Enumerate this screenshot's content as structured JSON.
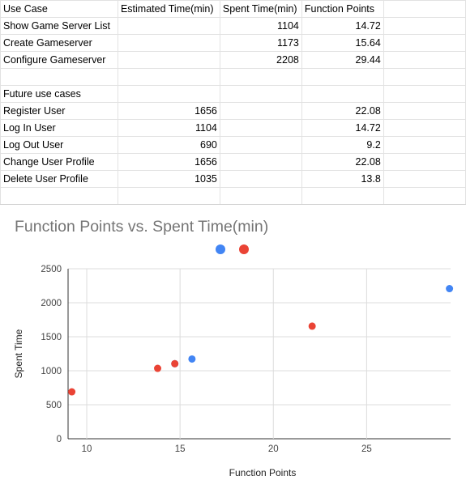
{
  "sheet": {
    "headers": [
      "Use Case",
      "Estimated Time(min)",
      "Spent Time(min)",
      "Function Points",
      ""
    ],
    "rows": [
      [
        "Show Game Server List",
        "",
        "1104",
        "14.72",
        ""
      ],
      [
        "Create Gameserver",
        "",
        "1173",
        "15.64",
        ""
      ],
      [
        "Configure Gameserver",
        "",
        "2208",
        "29.44",
        ""
      ],
      [
        "",
        "",
        "",
        "",
        ""
      ],
      [
        "Future use cases",
        "",
        "",
        "",
        ""
      ],
      [
        "Register User",
        "1656",
        "",
        "22.08",
        ""
      ],
      [
        "Log In User",
        "1104",
        "",
        "14.72",
        ""
      ],
      [
        "Log Out User",
        "690",
        "",
        "9.2",
        ""
      ],
      [
        "Change User Profile",
        "1656",
        "",
        "22.08",
        ""
      ],
      [
        "Delete User Profile",
        "1035",
        "",
        "13.8",
        ""
      ],
      [
        "",
        "",
        "",
        "",
        ""
      ]
    ]
  },
  "chart": {
    "title": "Function Points vs. Spent Time(min)",
    "colors": {
      "series1": "#4285f4",
      "series2": "#ea4335"
    }
  },
  "chart_data": {
    "type": "scatter",
    "title": "Function Points vs. Spent Time(min)",
    "xlabel": "Function Points",
    "ylabel": "Spent Time",
    "xlim": [
      9,
      29.5
    ],
    "ylim": [
      0,
      2500
    ],
    "x_ticks": [
      "10",
      "15",
      "20",
      "25"
    ],
    "x_tick_values": [
      10,
      15,
      20,
      25
    ],
    "y_ticks": [
      "0",
      "500",
      "1000",
      "1500",
      "2000",
      "2500"
    ],
    "y_tick_values": [
      0,
      500,
      1000,
      1500,
      2000,
      2500
    ],
    "legend_position": "top",
    "grid": true,
    "series": [
      {
        "color": "#4285f4",
        "points": [
          [
            14.72,
            1104
          ],
          [
            15.64,
            1173
          ],
          [
            29.44,
            2208
          ]
        ]
      },
      {
        "color": "#ea4335",
        "points": [
          [
            22.08,
            1656
          ],
          [
            14.72,
            1104
          ],
          [
            9.2,
            690
          ],
          [
            13.8,
            1035
          ]
        ]
      }
    ]
  }
}
